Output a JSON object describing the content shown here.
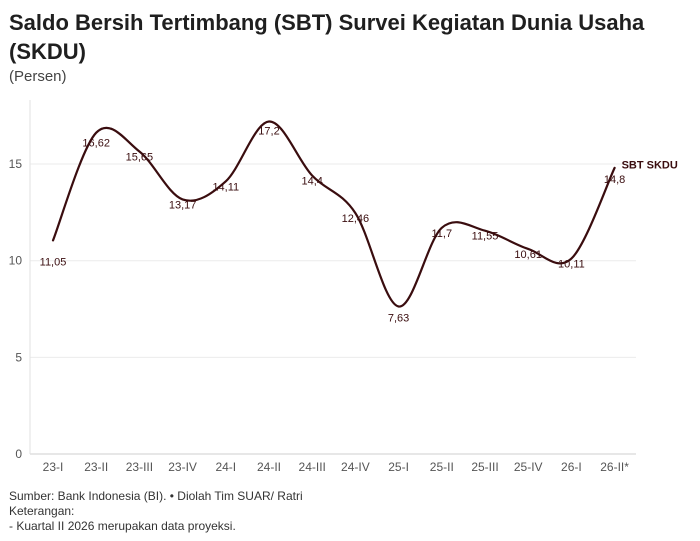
{
  "chart_data": {
    "type": "line",
    "title": "Saldo Bersih Tertimbang (SBT) Survei Kegiatan Dunia Usaha (SKDU)",
    "subtitle": "(Persen)",
    "categories": [
      "23-I",
      "23-II",
      "23-III",
      "23-IV",
      "24-I",
      "24-II",
      "24-III",
      "24-IV",
      "25-I",
      "25-II",
      "25-III",
      "25-IV",
      "26-I",
      "26-II*"
    ],
    "series": [
      {
        "name": "SBT SKDU",
        "values": [
          11.05,
          16.62,
          15.65,
          13.17,
          14.11,
          17.2,
          14.4,
          12.46,
          7.63,
          11.7,
          11.55,
          10.61,
          10.11,
          14.8
        ],
        "labels": [
          "11,05",
          "16,62",
          "15,65",
          "13,17",
          "14,11",
          "17,2",
          "14,4",
          "12,46",
          "7,63",
          "11,7",
          "11,55",
          "10,61",
          "10,11",
          "14,8"
        ],
        "color": "#3a0d0f"
      }
    ],
    "yticks": [
      0,
      5,
      10,
      15
    ],
    "ylim": [
      0,
      18
    ],
    "grid": true,
    "xlabel": "",
    "ylabel": ""
  },
  "footer": {
    "source": "Sumber: Bank Indonesia (BI). • Diolah Tim SUAR/ Ratri",
    "note_title": "Keterangan:",
    "note": "- Kuartal II 2026 merupakan data proyeksi."
  },
  "colors": {
    "line": "#3a0d0f",
    "grid": "#ebebeb",
    "axis": "#555555"
  }
}
